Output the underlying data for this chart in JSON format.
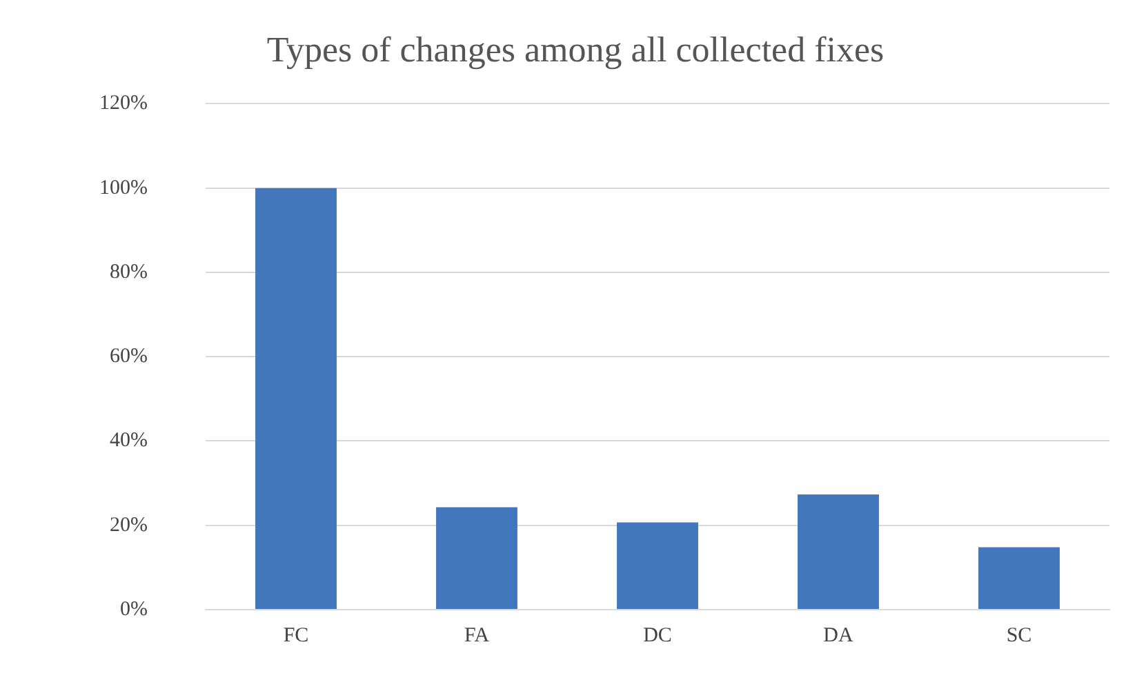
{
  "chart_data": {
    "type": "bar",
    "title": "Types of changes among all collected fixes",
    "categories": [
      "FC",
      "FA",
      "DC",
      "DA",
      "SC"
    ],
    "values": [
      100,
      24.3,
      20.7,
      27.3,
      14.8
    ],
    "color": "#4277bd",
    "ylim": [
      0,
      120
    ],
    "yticks": [
      {
        "value": 0,
        "label": "0%"
      },
      {
        "value": 20,
        "label": "20%"
      },
      {
        "value": 40,
        "label": "40%"
      },
      {
        "value": 60,
        "label": "60%"
      },
      {
        "value": 80,
        "label": "80%"
      },
      {
        "value": 100,
        "label": "100%"
      },
      {
        "value": 120,
        "label": "120%"
      }
    ],
    "grid": "y",
    "legend": false
  }
}
